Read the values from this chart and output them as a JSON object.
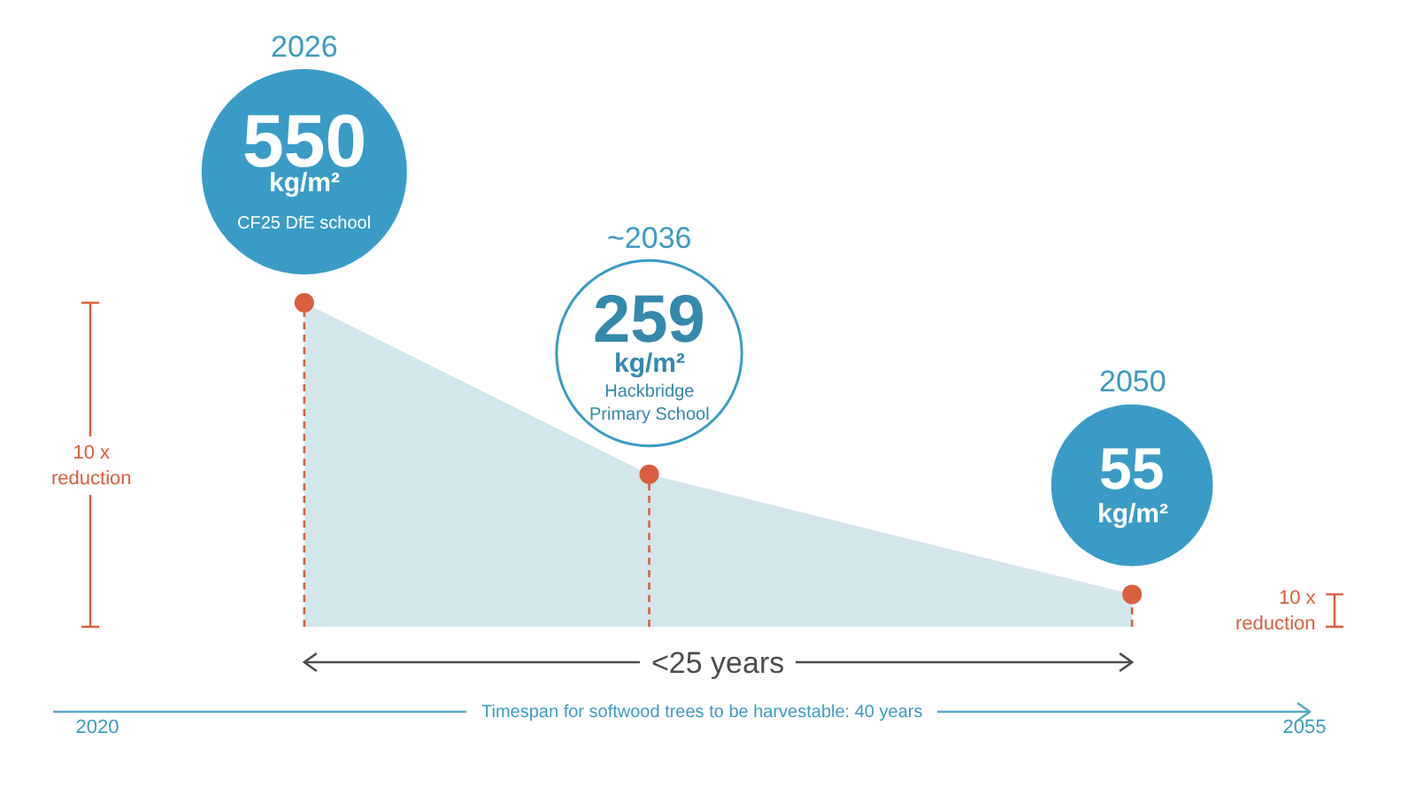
{
  "chart_data": {
    "type": "area",
    "x": [
      2026,
      2036,
      2050
    ],
    "xlim": [
      2020,
      2055
    ],
    "xticks": [
      2020,
      2055
    ],
    "xlabel": "Timespan for softwood trees to be harvestable: 40 years",
    "series": [
      {
        "color": "#d3e6eb",
        "values": [
          550,
          259,
          55
        ]
      },
      {
        "type": "lollipop",
        "color": "#d8603f",
        "values": [
          550,
          259,
          55
        ],
        "value_labels": [
          "550 kg/m²",
          "259 kg/m²",
          "55 kg/m²"
        ],
        "marker": "circle",
        "line_style": "dashed"
      }
    ],
    "annotations": [
      "2026",
      "CF25 DfE school",
      "~2036",
      "Hackbridge Primary School",
      "2050",
      "10 x reduction",
      "10 x reduction",
      "<25 years"
    ]
  }
}
